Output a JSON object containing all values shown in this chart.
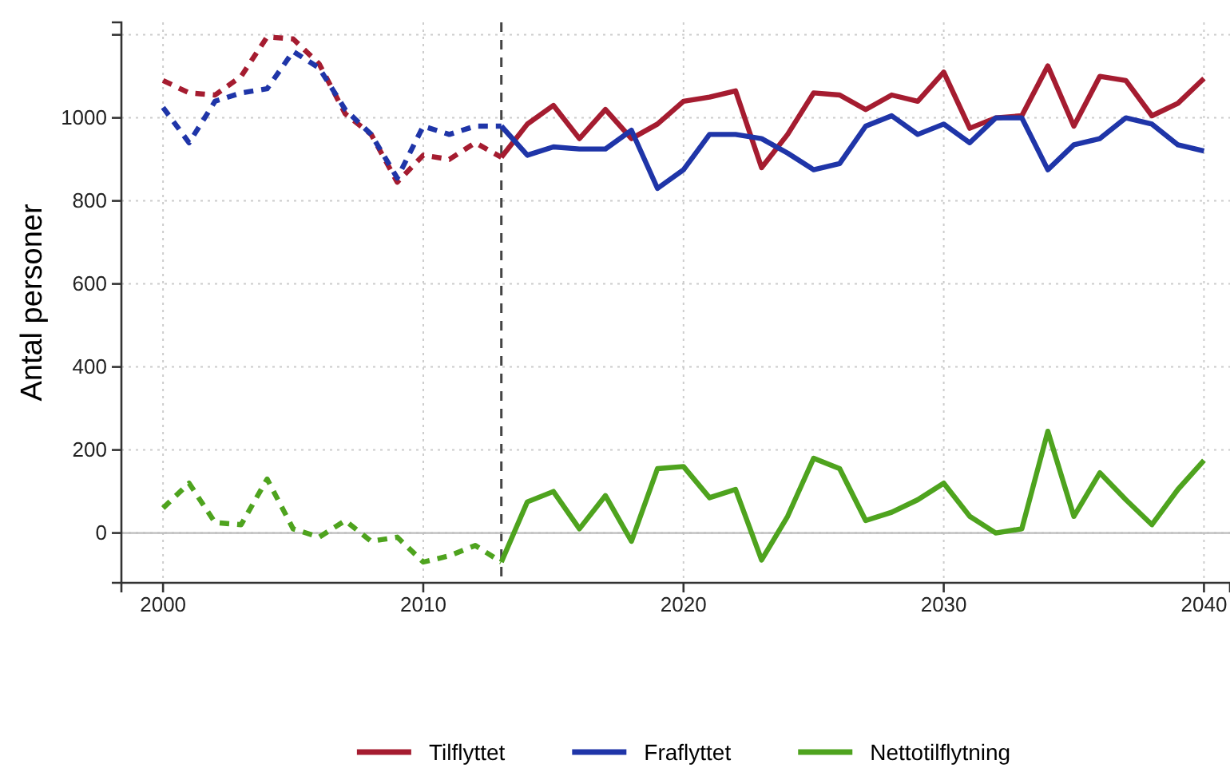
{
  "chart_data": {
    "type": "line",
    "ylabel": "Antal personer",
    "xlim": [
      1998.4,
      2041
    ],
    "xticks": [
      2000,
      2010,
      2020,
      2030,
      2040
    ],
    "ylim": [
      -120,
      1230
    ],
    "yticks": [
      0,
      200,
      400,
      600,
      800,
      1000,
      {
        "value": 1200,
        "label": null
      }
    ],
    "grid": true,
    "legend": "bottom",
    "line_style": "solid",
    "ref_lines": [
      {
        "axis": "x",
        "value": 2013,
        "color": "#444444",
        "line_style": "dashed"
      },
      {
        "axis": "y",
        "value": 0,
        "color": "#bbbbbb",
        "line_style": "solid"
      }
    ],
    "series": [
      {
        "color": "#a51c30",
        "line_style": "dashed",
        "x": [
          2000,
          2001,
          2002,
          2003,
          2004,
          2005,
          2006,
          2007,
          2008,
          2009,
          2010,
          2011,
          2012,
          2013
        ],
        "values": [
          1090,
          1060,
          1055,
          1100,
          1195,
          1190,
          1130,
          1010,
          960,
          845,
          910,
          900,
          940,
          905
        ]
      },
      {
        "color": "#1f35a8",
        "line_style": "dashed",
        "x": [
          2000,
          2001,
          2002,
          2003,
          2004,
          2005,
          2006,
          2007,
          2008,
          2009,
          2010,
          2011,
          2012,
          2013
        ],
        "values": [
          1025,
          940,
          1040,
          1060,
          1070,
          1160,
          1120,
          1020,
          960,
          855,
          980,
          960,
          980,
          980
        ]
      },
      {
        "color": "#4ea31e",
        "line_style": "dashed",
        "x": [
          2000,
          2001,
          2002,
          2003,
          2004,
          2005,
          2006,
          2007,
          2008,
          2009,
          2010,
          2011,
          2012,
          2013
        ],
        "values": [
          60,
          120,
          25,
          20,
          130,
          10,
          -10,
          30,
          -20,
          -10,
          -70,
          -55,
          -30,
          -70
        ]
      },
      {
        "name": "Tilflyttet",
        "color": "#a51c30",
        "x": [
          2013,
          2014,
          2015,
          2016,
          2017,
          2018,
          2019,
          2020,
          2021,
          2022,
          2023,
          2024,
          2025,
          2026,
          2027,
          2028,
          2029,
          2030,
          2031,
          2032,
          2033,
          2034,
          2035,
          2036,
          2037,
          2038,
          2039,
          2040
        ],
        "values": [
          905,
          985,
          1030,
          950,
          1020,
          950,
          985,
          1040,
          1050,
          1065,
          880,
          960,
          1060,
          1055,
          1020,
          1055,
          1040,
          1110,
          975,
          1000,
          1005,
          1125,
          980,
          1100,
          1090,
          1005,
          1035,
          1095
        ]
      },
      {
        "name": "Fraflyttet",
        "color": "#1f35a8",
        "x": [
          2013,
          2014,
          2015,
          2016,
          2017,
          2018,
          2019,
          2020,
          2021,
          2022,
          2023,
          2024,
          2025,
          2026,
          2027,
          2028,
          2029,
          2030,
          2031,
          2032,
          2033,
          2034,
          2035,
          2036,
          2037,
          2038,
          2039,
          2040
        ],
        "values": [
          980,
          910,
          930,
          925,
          925,
          970,
          830,
          875,
          960,
          960,
          950,
          915,
          875,
          890,
          980,
          1005,
          960,
          985,
          940,
          1000,
          1000,
          875,
          935,
          950,
          1000,
          985,
          935,
          920
        ]
      },
      {
        "name": "Nettotilflytning",
        "color": "#4ea31e",
        "x": [
          2013,
          2014,
          2015,
          2016,
          2017,
          2018,
          2019,
          2020,
          2021,
          2022,
          2023,
          2024,
          2025,
          2026,
          2027,
          2028,
          2029,
          2030,
          2031,
          2032,
          2033,
          2034,
          2035,
          2036,
          2037,
          2038,
          2039,
          2040
        ],
        "values": [
          -70,
          75,
          100,
          10,
          90,
          -20,
          155,
          160,
          85,
          105,
          -65,
          40,
          180,
          155,
          30,
          50,
          80,
          120,
          40,
          0,
          10,
          245,
          40,
          145,
          80,
          20,
          105,
          175
        ]
      }
    ]
  }
}
